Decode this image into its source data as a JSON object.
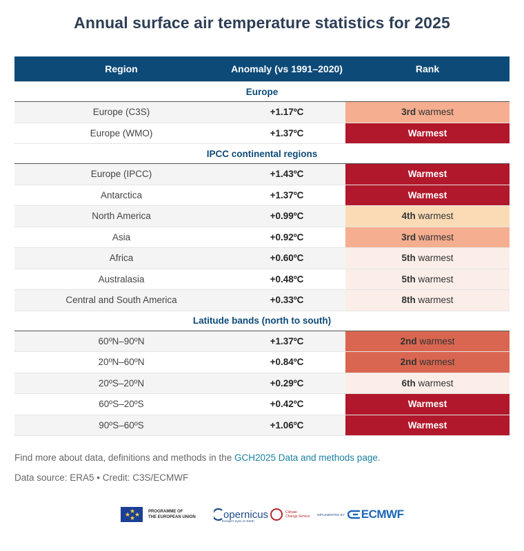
{
  "title": "Annual surface air temperature statistics for 2025",
  "columns": [
    "Region",
    "Anomaly (vs 1991–2020)",
    "Rank"
  ],
  "sections": [
    {
      "heading": "Europe",
      "rows": [
        {
          "region": "Europe (C3S)",
          "anomaly": "+1.17ºC",
          "rank_bold": "3rd",
          "rank_rest": " warmest",
          "color": "#f5ae8f",
          "dark": false
        },
        {
          "region": "Europe (WMO)",
          "anomaly": "+1.37ºC",
          "rank_bold": "Warmest",
          "rank_rest": "",
          "color": "#b2182b",
          "dark": true
        }
      ]
    },
    {
      "heading": "IPCC continental regions",
      "rows": [
        {
          "region": "Europe (IPCC)",
          "anomaly": "+1.43ºC",
          "rank_bold": "Warmest",
          "rank_rest": "",
          "color": "#b2182b",
          "dark": true
        },
        {
          "region": "Antarctica",
          "anomaly": "+1.37ºC",
          "rank_bold": "Warmest",
          "rank_rest": "",
          "color": "#b2182b",
          "dark": true
        },
        {
          "region": "North America",
          "anomaly": "+0.99ºC",
          "rank_bold": "4th",
          "rank_rest": " warmest",
          "color": "#fadbb5",
          "dark": false
        },
        {
          "region": "Asia",
          "anomaly": "+0.92ºC",
          "rank_bold": "3rd",
          "rank_rest": " warmest",
          "color": "#f5ae8f",
          "dark": false
        },
        {
          "region": "Africa",
          "anomaly": "+0.60ºC",
          "rank_bold": "5th",
          "rank_rest": " warmest",
          "color": "#fbeee8",
          "dark": false
        },
        {
          "region": "Australasia",
          "anomaly": "+0.48ºC",
          "rank_bold": "5th",
          "rank_rest": " warmest",
          "color": "#fbeee8",
          "dark": false
        },
        {
          "region": "Central and South America",
          "anomaly": "+0.33ºC",
          "rank_bold": "8th",
          "rank_rest": " warmest",
          "color": "#fbeee8",
          "dark": false
        }
      ]
    },
    {
      "heading": "Latitude bands (north to south)",
      "rows": [
        {
          "region": "60ºN–90ºN",
          "anomaly": "+1.37ºC",
          "rank_bold": "2nd",
          "rank_rest": " warmest",
          "color": "#d96650",
          "dark": false
        },
        {
          "region": "20ºN–60ºN",
          "anomaly": "+0.84ºC",
          "rank_bold": "2nd",
          "rank_rest": " warmest",
          "color": "#d96650",
          "dark": false
        },
        {
          "region": "20ºS–20ºN",
          "anomaly": "+0.29ºC",
          "rank_bold": "6th",
          "rank_rest": " warmest",
          "color": "#fbeee8",
          "dark": false
        },
        {
          "region": "60ºS–20ºS",
          "anomaly": "+0.42ºC",
          "rank_bold": "Warmest",
          "rank_rest": "",
          "color": "#b2182b",
          "dark": true
        },
        {
          "region": "90ºS–60ºS",
          "anomaly": "+1.06ºC",
          "rank_bold": "Warmest",
          "rank_rest": "",
          "color": "#b2182b",
          "dark": true
        }
      ]
    }
  ],
  "footer": {
    "line1_prefix": "Find more about data, definitions and methods in the ",
    "line1_link": "GCH2025 Data and methods page",
    "line1_suffix": ".",
    "line2": "Data source: ERA5 • Credit: C3S/ECMWF"
  },
  "logos": {
    "eu_line1": "PROGRAMME OF",
    "eu_line2": "THE EUROPEAN UNION",
    "copernicus": "opernicus",
    "copernicus_tagline": "Europe's eyes on Earth",
    "ccs_line1": "Climate",
    "ccs_line2": "Change Service",
    "implemented_by": "IMPLEMENTED BY",
    "ecmwf": "ECMWF"
  }
}
